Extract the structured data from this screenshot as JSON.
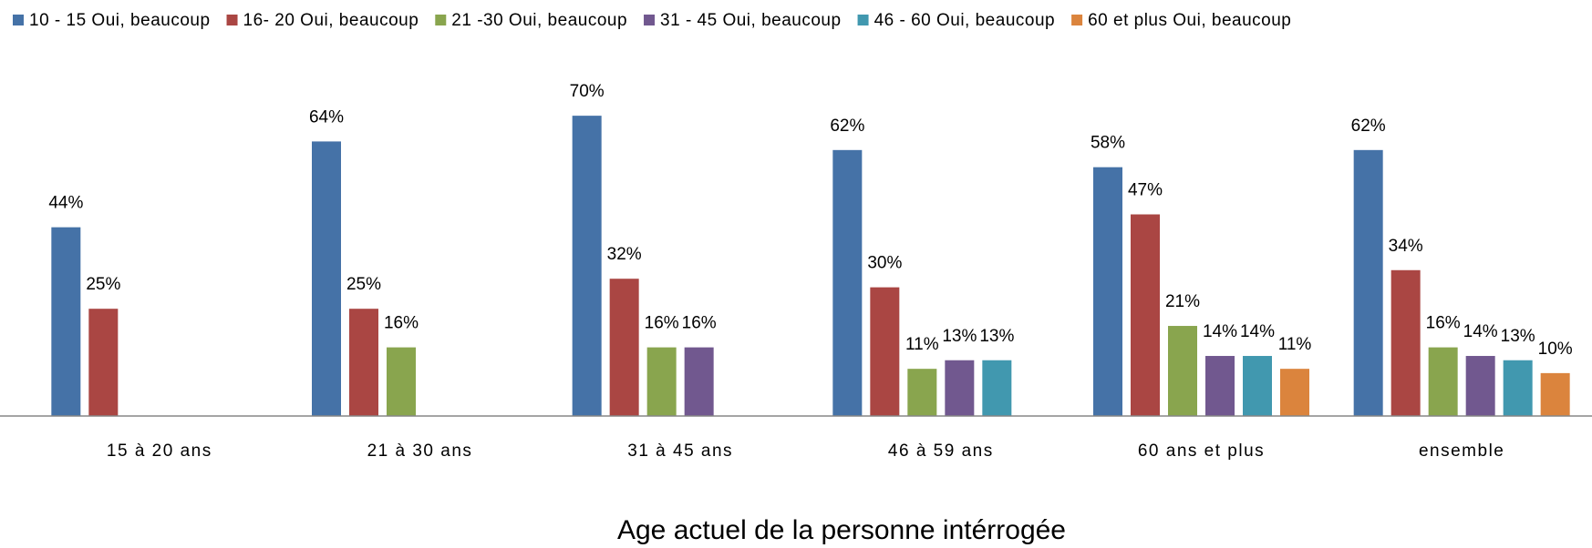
{
  "chart_data": {
    "type": "bar",
    "x_label": "Age actuel de la personne intérrogée",
    "categories": [
      "15 à 20 ans",
      "21 à 30 ans",
      "31 à 45 ans",
      "46 à 59 ans",
      "60 ans et plus",
      "ensemble"
    ],
    "series": [
      {
        "name": "10 - 15 Oui, beaucoup",
        "color": "#4572a7",
        "values": [
          44,
          64,
          70,
          62,
          58,
          62
        ],
        "value_labels": [
          "44%",
          "64%",
          "70%",
          "62%",
          "58%",
          "62%"
        ]
      },
      {
        "name": "16- 20 Oui, beaucoup",
        "color": "#aa4643",
        "values": [
          25,
          25,
          32,
          30,
          47,
          34
        ],
        "value_labels": [
          "25%",
          "25%",
          "32%",
          "30%",
          "47%",
          "34%"
        ]
      },
      {
        "name": "21 -30 Oui, beaucoup",
        "color": "#89a54e",
        "values": [
          null,
          16,
          16,
          11,
          21,
          16
        ],
        "value_labels": [
          null,
          "16%",
          "16%",
          "11%",
          "21%",
          "16%"
        ]
      },
      {
        "name": "31 - 45 Oui, beaucoup",
        "color": "#71588f",
        "values": [
          null,
          null,
          16,
          13,
          14,
          14
        ],
        "value_labels": [
          null,
          null,
          "16%",
          "13%",
          "14%",
          "14%"
        ]
      },
      {
        "name": "46 - 60 Oui, beaucoup",
        "color": "#4198af",
        "values": [
          null,
          null,
          null,
          13,
          14,
          13
        ],
        "value_labels": [
          null,
          null,
          null,
          "13%",
          "14%",
          "13%"
        ]
      },
      {
        "name": "60 et plus Oui, beaucoup",
        "color": "#db843d",
        "values": [
          null,
          null,
          null,
          null,
          11,
          10
        ],
        "value_labels": [
          null,
          null,
          null,
          null,
          "11%",
          "10%"
        ]
      }
    ],
    "ylim": [
      0,
      80
    ],
    "legend": "top"
  }
}
